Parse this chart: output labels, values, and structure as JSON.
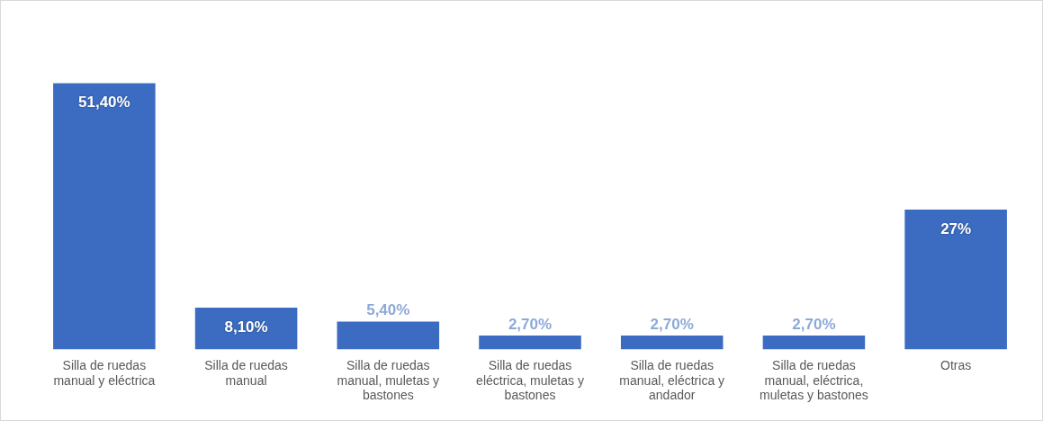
{
  "chart_data": {
    "type": "bar",
    "categories": [
      "Silla de ruedas manual y eléctrica",
      "Silla de ruedas manual",
      "Silla de ruedas manual, muletas y bastones",
      "Silla de ruedas eléctrica, muletas y bastones",
      "Silla de ruedas manual, eléctrica y andador",
      "Silla de ruedas manual, eléctrica, muletas y bastones",
      "Otras"
    ],
    "values": [
      51.4,
      8.1,
      5.4,
      2.7,
      2.7,
      2.7,
      27
    ],
    "value_labels": [
      "51,40%",
      "8,10%",
      "5,40%",
      "2,70%",
      "2,70%",
      "2,70%",
      "27%"
    ],
    "color": "#3b6cc2",
    "grid": false,
    "legend": false
  }
}
